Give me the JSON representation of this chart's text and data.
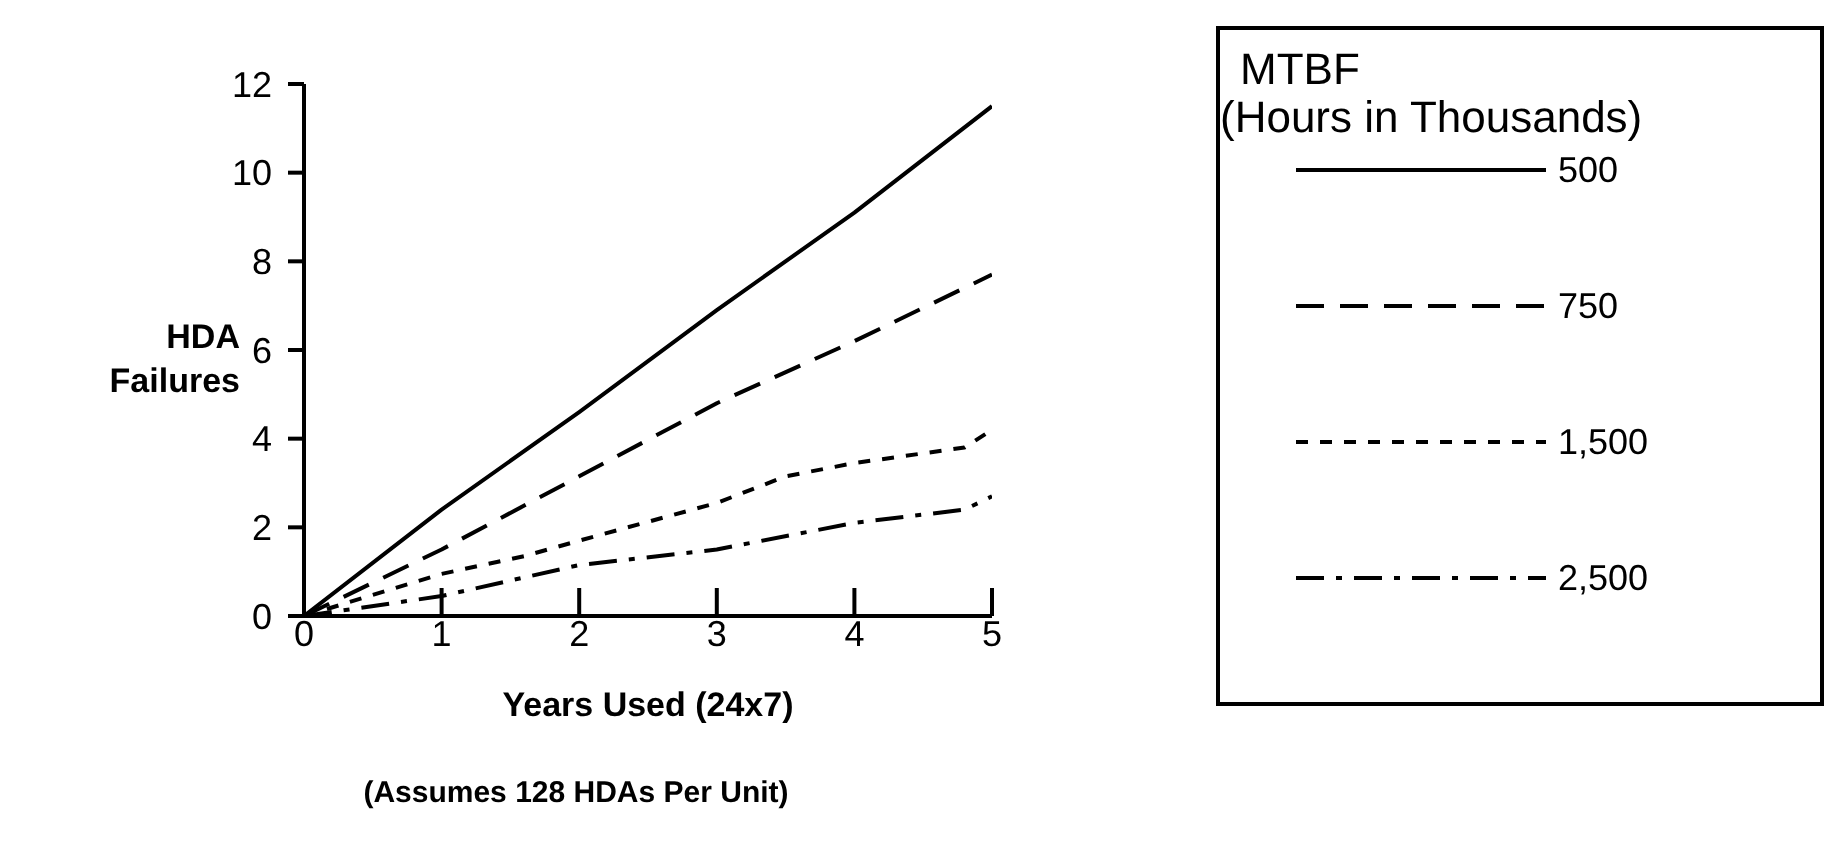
{
  "chart_data": {
    "type": "line",
    "xlabel": "Years Used (24x7)",
    "ylabel": "HDA Failures",
    "legend_title": "MTBF\n(Hours in Thousands)",
    "annotations": [
      "(Assumes 128 HDAs Per Unit)"
    ],
    "xlim": [
      0,
      5
    ],
    "xticks": [
      0,
      1,
      2,
      3,
      4,
      5
    ],
    "ylim": [
      0,
      12
    ],
    "yticks": [
      0,
      2,
      4,
      6,
      8,
      10,
      12
    ],
    "legend": "right",
    "marker": "none",
    "series": [
      {
        "name": "500",
        "color": "#000000",
        "line_style": "solid",
        "x": [
          0,
          1,
          2,
          3,
          4,
          5
        ],
        "values": [
          0,
          2.4,
          4.6,
          6.9,
          9.1,
          11.5
        ]
      },
      {
        "name": "750",
        "color": "#000000",
        "line_style": "dashed",
        "x": [
          0,
          1,
          2,
          3,
          4,
          5
        ],
        "values": [
          0,
          1.5,
          3.15,
          4.8,
          6.2,
          7.7
        ]
      },
      {
        "name": "1,500",
        "color": "#000000",
        "line_style": "dotted",
        "x": [
          0,
          1,
          1.6,
          2,
          3,
          3.5,
          4,
          4.8,
          5
        ],
        "values": [
          0,
          0.95,
          1.35,
          1.7,
          2.55,
          3.15,
          3.45,
          3.8,
          4.2
        ]
      },
      {
        "name": "2,500",
        "color": "#000000",
        "line_style": "dashdot",
        "x": [
          0,
          1,
          2,
          3,
          4,
          4.8,
          5
        ],
        "values": [
          0,
          0.45,
          1.15,
          1.5,
          2.1,
          2.4,
          2.7
        ]
      }
    ]
  }
}
